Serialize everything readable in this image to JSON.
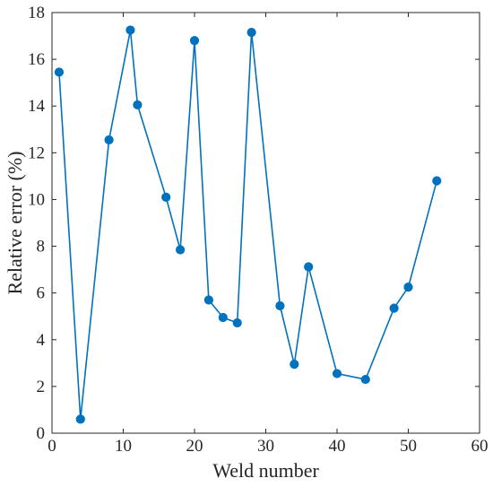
{
  "chart_data": {
    "type": "line",
    "title": "",
    "xlabel": "Weld number",
    "ylabel": "Relative error (%)",
    "xlim": [
      0,
      60
    ],
    "ylim": [
      0,
      18
    ],
    "xticks": [
      0,
      10,
      20,
      30,
      40,
      50,
      60
    ],
    "yticks": [
      0,
      2,
      4,
      6,
      8,
      10,
      12,
      14,
      16,
      18
    ],
    "grid": false,
    "legend": "none",
    "series": [
      {
        "color": "#0072BD",
        "marker": "circle",
        "x": [
          1,
          4,
          8,
          11,
          12,
          16,
          18,
          20,
          22,
          24,
          26,
          28,
          32,
          34,
          36,
          40,
          44,
          48,
          50,
          54
        ],
        "y": [
          15.45,
          0.6,
          12.55,
          17.25,
          14.05,
          10.1,
          7.85,
          16.8,
          5.7,
          4.95,
          4.72,
          17.15,
          5.45,
          2.95,
          7.12,
          2.55,
          2.3,
          5.35,
          6.25,
          10.8
        ]
      }
    ]
  }
}
